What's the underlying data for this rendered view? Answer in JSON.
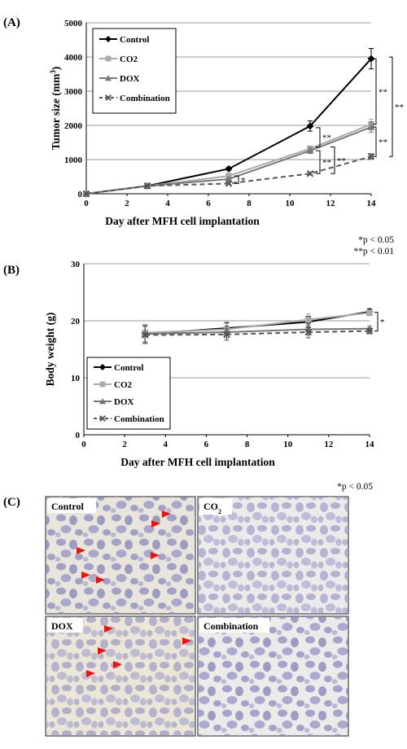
{
  "chart_data": [
    {
      "type": "line",
      "panel_label": "(A)",
      "xlabel": "Day after MFH cell implantation",
      "ylabel_main": "Tumor size (mm",
      "ylabel_sup": "3",
      "ylabel_close": ")",
      "x": [
        0,
        3,
        7,
        11,
        14
      ],
      "xlim": [
        0,
        14
      ],
      "xticks": [
        "0",
        "2",
        "4",
        "6",
        "8",
        "10",
        "12",
        "14"
      ],
      "ylim": [
        0,
        5000
      ],
      "yticks": [
        "0",
        "1000",
        "2000",
        "3000",
        "4000",
        "5000"
      ],
      "grid": true,
      "legend_position": "top-left",
      "series": [
        {
          "name": "Control",
          "values": [
            0,
            230,
            730,
            1980,
            3950
          ],
          "errors": [
            0,
            20,
            40,
            150,
            300
          ],
          "color": "#000000",
          "marker": "diamond",
          "dashed": false
        },
        {
          "name": "CO2",
          "values": [
            0,
            230,
            520,
            1320,
            2030
          ],
          "errors": [
            0,
            20,
            30,
            80,
            150
          ],
          "color": "#aaaaaa",
          "marker": "square",
          "dashed": false
        },
        {
          "name": "DOX",
          "values": [
            0,
            230,
            430,
            1260,
            1950
          ],
          "errors": [
            0,
            20,
            30,
            80,
            150
          ],
          "color": "#777777",
          "marker": "triangle",
          "dashed": false
        },
        {
          "name": "Combination",
          "values": [
            0,
            230,
            300,
            590,
            1090
          ],
          "errors": [
            0,
            20,
            20,
            40,
            80
          ],
          "color": "#555555",
          "marker": "x",
          "dashed": true
        }
      ],
      "significance": [
        "*",
        "**",
        "**",
        "**",
        "**",
        "**",
        "**"
      ],
      "pvalue_note_1": "*p < 0.05",
      "pvalue_note_2": "**p < 0.01"
    },
    {
      "type": "line",
      "panel_label": "(B)",
      "xlabel": "Day after MFH cell implantation",
      "ylabel": "Body weight (g)",
      "x": [
        3,
        7,
        11,
        14
      ],
      "xlim": [
        0,
        14
      ],
      "xticks": [
        "0",
        "2",
        "4",
        "6",
        "8",
        "10",
        "12",
        "14"
      ],
      "ylim": [
        0,
        30
      ],
      "yticks": [
        "0",
        "10",
        "20",
        "30"
      ],
      "grid": true,
      "legend_position": "bottom-left",
      "series": [
        {
          "name": "Control",
          "values": [
            17.7,
            18.7,
            19.8,
            21.6
          ],
          "errors": [
            1.5,
            1.0,
            1.0,
            0.5
          ],
          "color": "#000000",
          "marker": "diamond",
          "dashed": false
        },
        {
          "name": "CO2",
          "values": [
            17.9,
            18.5,
            20.2,
            21.4
          ],
          "errors": [
            1.5,
            1.0,
            1.0,
            0.5
          ],
          "color": "#aaaaaa",
          "marker": "square",
          "dashed": false
        },
        {
          "name": "DOX",
          "values": [
            17.7,
            18.0,
            18.5,
            18.6
          ],
          "errors": [
            1.5,
            1.0,
            1.0,
            0.5
          ],
          "color": "#777777",
          "marker": "triangle",
          "dashed": false
        },
        {
          "name": "Combination",
          "values": [
            17.5,
            17.6,
            18.0,
            18.2
          ],
          "errors": [
            1.5,
            1.0,
            1.0,
            0.5
          ],
          "color": "#555555",
          "marker": "x",
          "dashed": true
        }
      ],
      "significance": [
        "*"
      ],
      "pvalue_note": "*p < 0.05"
    }
  ],
  "panel_c": {
    "label": "(C)",
    "images": [
      {
        "label": "Control"
      },
      {
        "label": "CO",
        "sub": "2"
      },
      {
        "label": "DOX"
      },
      {
        "label": "Combination"
      }
    ],
    "arrow_color": "#ee1111"
  }
}
